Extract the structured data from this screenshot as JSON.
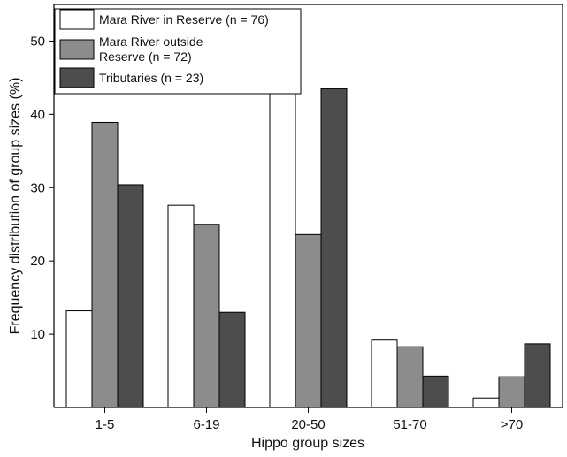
{
  "chart_data": {
    "type": "bar",
    "title": "",
    "xlabel": "Hippo group sizes",
    "ylabel": "Frequency distribution of group sizes (%)",
    "categories": [
      "1-5",
      "6-19",
      "20-50",
      "51-70",
      ">70"
    ],
    "ylim": [
      0,
      55
    ],
    "yticks": [
      10,
      20,
      30,
      40,
      50
    ],
    "grid": false,
    "legend_position": "top-left",
    "series": [
      {
        "name": "Mara River in Reserve (n = 76)",
        "values": [
          13.2,
          27.6,
          48.7,
          9.2,
          1.3
        ],
        "color": "#ffffff"
      },
      {
        "name": "Mara River outside Reserve (n = 72)",
        "values": [
          38.9,
          25.0,
          23.6,
          8.3,
          4.2
        ],
        "color": "#8c8c8c"
      },
      {
        "name": "Tributaries (n = 23)",
        "values": [
          30.4,
          13.0,
          43.5,
          4.3,
          8.7
        ],
        "color": "#4d4d4d"
      }
    ]
  }
}
